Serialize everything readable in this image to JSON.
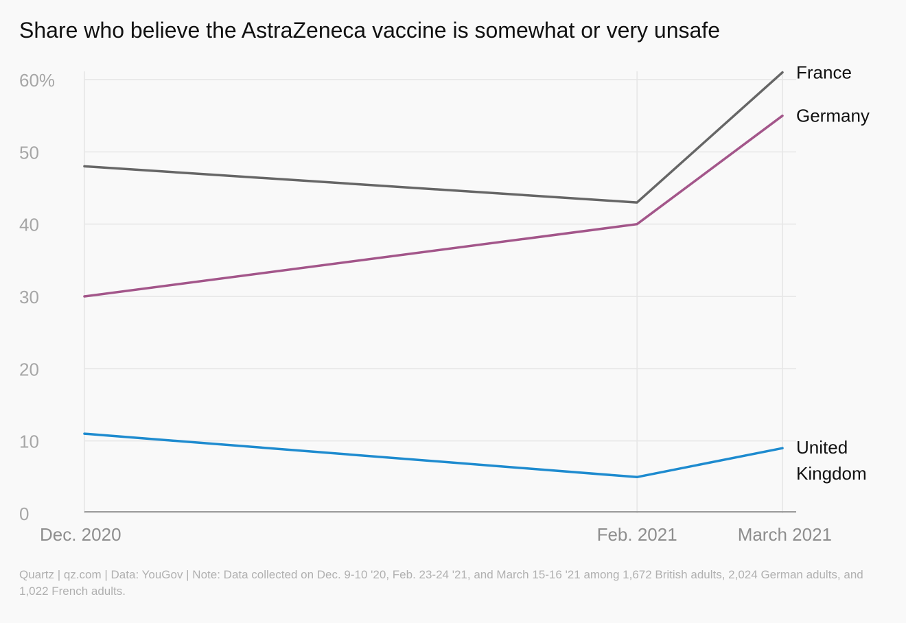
{
  "chart_data": {
    "type": "line",
    "title": "Share who believe the AstraZeneca vaccine is somewhat or very unsafe",
    "categories": [
      "Dec. 2020",
      "Feb. 2021",
      "March 2021"
    ],
    "x_dates": [
      "2020-12-10",
      "2021-02-24",
      "2021-03-16"
    ],
    "series": [
      {
        "name": "France",
        "values": [
          48,
          43,
          61
        ],
        "color": "#666666"
      },
      {
        "name": "Germany",
        "values": [
          30,
          40,
          55
        ],
        "color": "#a3568a"
      },
      {
        "name": "United Kingdom",
        "label_lines": [
          "United",
          "Kingdom"
        ],
        "values": [
          11,
          5,
          9
        ],
        "color": "#1e8bcf"
      }
    ],
    "yticks": [
      0,
      10,
      20,
      30,
      40,
      50,
      60
    ],
    "ytick_labels": [
      "0",
      "10",
      "20",
      "30",
      "40",
      "50",
      "60%"
    ],
    "ylim": [
      0,
      60
    ],
    "xlabel": "",
    "ylabel": "",
    "grid": true,
    "legend": "direct labels at line ends (right)"
  },
  "footer": "Quartz | qz.com | Data: YouGov | Note: Data collected on Dec. 9-10 '20, Feb. 23-24 '21, and March 15-16 '21 among 1,672 British adults, 2,024 German adults, and 1,022 French adults."
}
